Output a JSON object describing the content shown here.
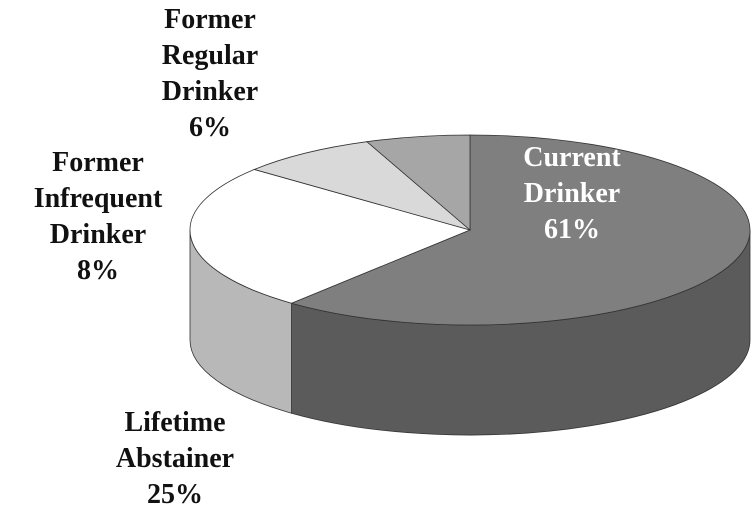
{
  "chart_data": {
    "type": "pie",
    "categories": [
      "Current Drinker",
      "Lifetime Abstainer",
      "Former Infrequent Drinker",
      "Former Regular Drinker"
    ],
    "values": [
      61,
      25,
      8,
      6
    ],
    "value_labels": [
      "61%",
      "25%",
      "8%",
      "6%"
    ],
    "colors": [
      "#7f7f7f",
      "#ffffff",
      "#d9d9d9",
      "#a6a6a6"
    ],
    "three_d": true
  }
}
